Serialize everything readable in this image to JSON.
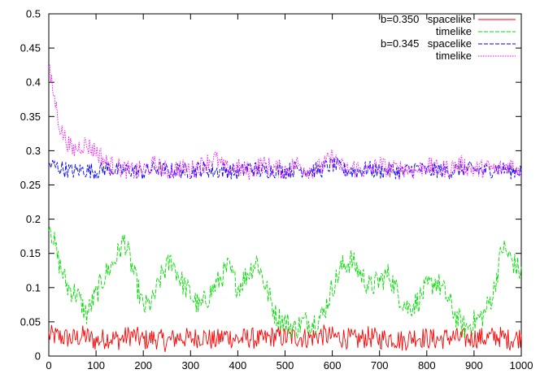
{
  "chart_data": {
    "type": "line",
    "title": "",
    "xlabel": "",
    "ylabel": "",
    "xlim": [
      0,
      1000
    ],
    "ylim": [
      0,
      0.5
    ],
    "x_ticks": [
      "0",
      "100",
      "200",
      "300",
      "400",
      "500",
      "600",
      "700",
      "800",
      "900",
      "1000"
    ],
    "y_ticks": [
      "0",
      "0.05",
      "0.1",
      "0.15",
      "0.2",
      "0.25",
      "0.3",
      "0.35",
      "0.4",
      "0.45",
      "0.5"
    ],
    "grid": false,
    "legend_position": "top-right",
    "legend_groups": [
      "b=0.350",
      "b=0.345"
    ],
    "series": [
      {
        "name": "spacelike",
        "group": "b=0.350",
        "color": "#ff0000",
        "dash": "solid",
        "x": [
          0,
          25,
          50,
          75,
          100,
          125,
          150,
          175,
          200,
          225,
          250,
          275,
          300,
          325,
          350,
          375,
          400,
          425,
          450,
          475,
          500,
          525,
          550,
          575,
          600,
          625,
          650,
          675,
          700,
          725,
          750,
          775,
          800,
          825,
          850,
          875,
          900,
          925,
          950,
          975,
          1000
        ],
        "values": [
          0.03,
          0.028,
          0.025,
          0.03,
          0.022,
          0.027,
          0.024,
          0.031,
          0.023,
          0.026,
          0.021,
          0.028,
          0.025,
          0.029,
          0.022,
          0.03,
          0.024,
          0.027,
          0.023,
          0.029,
          0.027,
          0.028,
          0.026,
          0.031,
          0.028,
          0.027,
          0.023,
          0.028,
          0.025,
          0.027,
          0.022,
          0.029,
          0.026,
          0.024,
          0.028,
          0.025,
          0.027,
          0.026,
          0.029,
          0.024,
          0.028
        ]
      },
      {
        "name": "timelike",
        "group": "b=0.350",
        "color": "#00dd00",
        "dash": "dashed",
        "x": [
          0,
          20,
          40,
          60,
          80,
          100,
          120,
          140,
          160,
          180,
          200,
          220,
          240,
          260,
          280,
          300,
          320,
          340,
          360,
          380,
          400,
          420,
          440,
          460,
          480,
          500,
          520,
          540,
          560,
          580,
          600,
          620,
          640,
          660,
          680,
          700,
          720,
          740,
          760,
          780,
          800,
          820,
          840,
          860,
          880,
          900,
          920,
          940,
          960,
          980,
          1000
        ],
        "values": [
          0.2,
          0.14,
          0.1,
          0.09,
          0.06,
          0.09,
          0.12,
          0.14,
          0.17,
          0.12,
          0.07,
          0.08,
          0.12,
          0.14,
          0.11,
          0.09,
          0.07,
          0.09,
          0.11,
          0.13,
          0.1,
          0.12,
          0.14,
          0.1,
          0.06,
          0.05,
          0.04,
          0.05,
          0.05,
          0.06,
          0.1,
          0.13,
          0.14,
          0.12,
          0.1,
          0.11,
          0.12,
          0.09,
          0.07,
          0.08,
          0.1,
          0.11,
          0.09,
          0.06,
          0.04,
          0.05,
          0.06,
          0.09,
          0.16,
          0.14,
          0.12
        ]
      },
      {
        "name": "spacelike",
        "group": "b=0.345",
        "color": "#0000ff",
        "dash": "dashed",
        "x": [
          0,
          25,
          50,
          75,
          100,
          125,
          150,
          175,
          200,
          225,
          250,
          275,
          300,
          325,
          350,
          375,
          400,
          425,
          450,
          475,
          500,
          525,
          550,
          575,
          600,
          625,
          650,
          675,
          700,
          725,
          750,
          775,
          800,
          825,
          850,
          875,
          900,
          925,
          950,
          975,
          1000
        ],
        "values": [
          0.28,
          0.275,
          0.27,
          0.272,
          0.27,
          0.275,
          0.27,
          0.272,
          0.268,
          0.275,
          0.27,
          0.272,
          0.27,
          0.274,
          0.27,
          0.272,
          0.268,
          0.275,
          0.27,
          0.272,
          0.27,
          0.274,
          0.271,
          0.272,
          0.28,
          0.272,
          0.27,
          0.274,
          0.27,
          0.272,
          0.268,
          0.275,
          0.27,
          0.272,
          0.27,
          0.274,
          0.272,
          0.27,
          0.275,
          0.27,
          0.272
        ]
      },
      {
        "name": "timelike",
        "group": "b=0.345",
        "color": "#ff00ff",
        "dash": "dotted",
        "x": [
          0,
          25,
          50,
          75,
          100,
          125,
          150,
          175,
          200,
          225,
          250,
          275,
          300,
          325,
          350,
          375,
          400,
          425,
          450,
          475,
          500,
          525,
          550,
          575,
          600,
          625,
          650,
          675,
          700,
          725,
          750,
          775,
          800,
          825,
          850,
          875,
          900,
          925,
          950,
          975,
          1000
        ],
        "values": [
          0.42,
          0.33,
          0.3,
          0.31,
          0.3,
          0.28,
          0.275,
          0.27,
          0.272,
          0.28,
          0.27,
          0.275,
          0.272,
          0.28,
          0.29,
          0.272,
          0.275,
          0.27,
          0.28,
          0.275,
          0.272,
          0.28,
          0.272,
          0.275,
          0.29,
          0.272,
          0.275,
          0.27,
          0.28,
          0.272,
          0.275,
          0.27,
          0.278,
          0.272,
          0.275,
          0.28,
          0.272,
          0.275,
          0.272,
          0.28,
          0.272
        ]
      }
    ]
  }
}
